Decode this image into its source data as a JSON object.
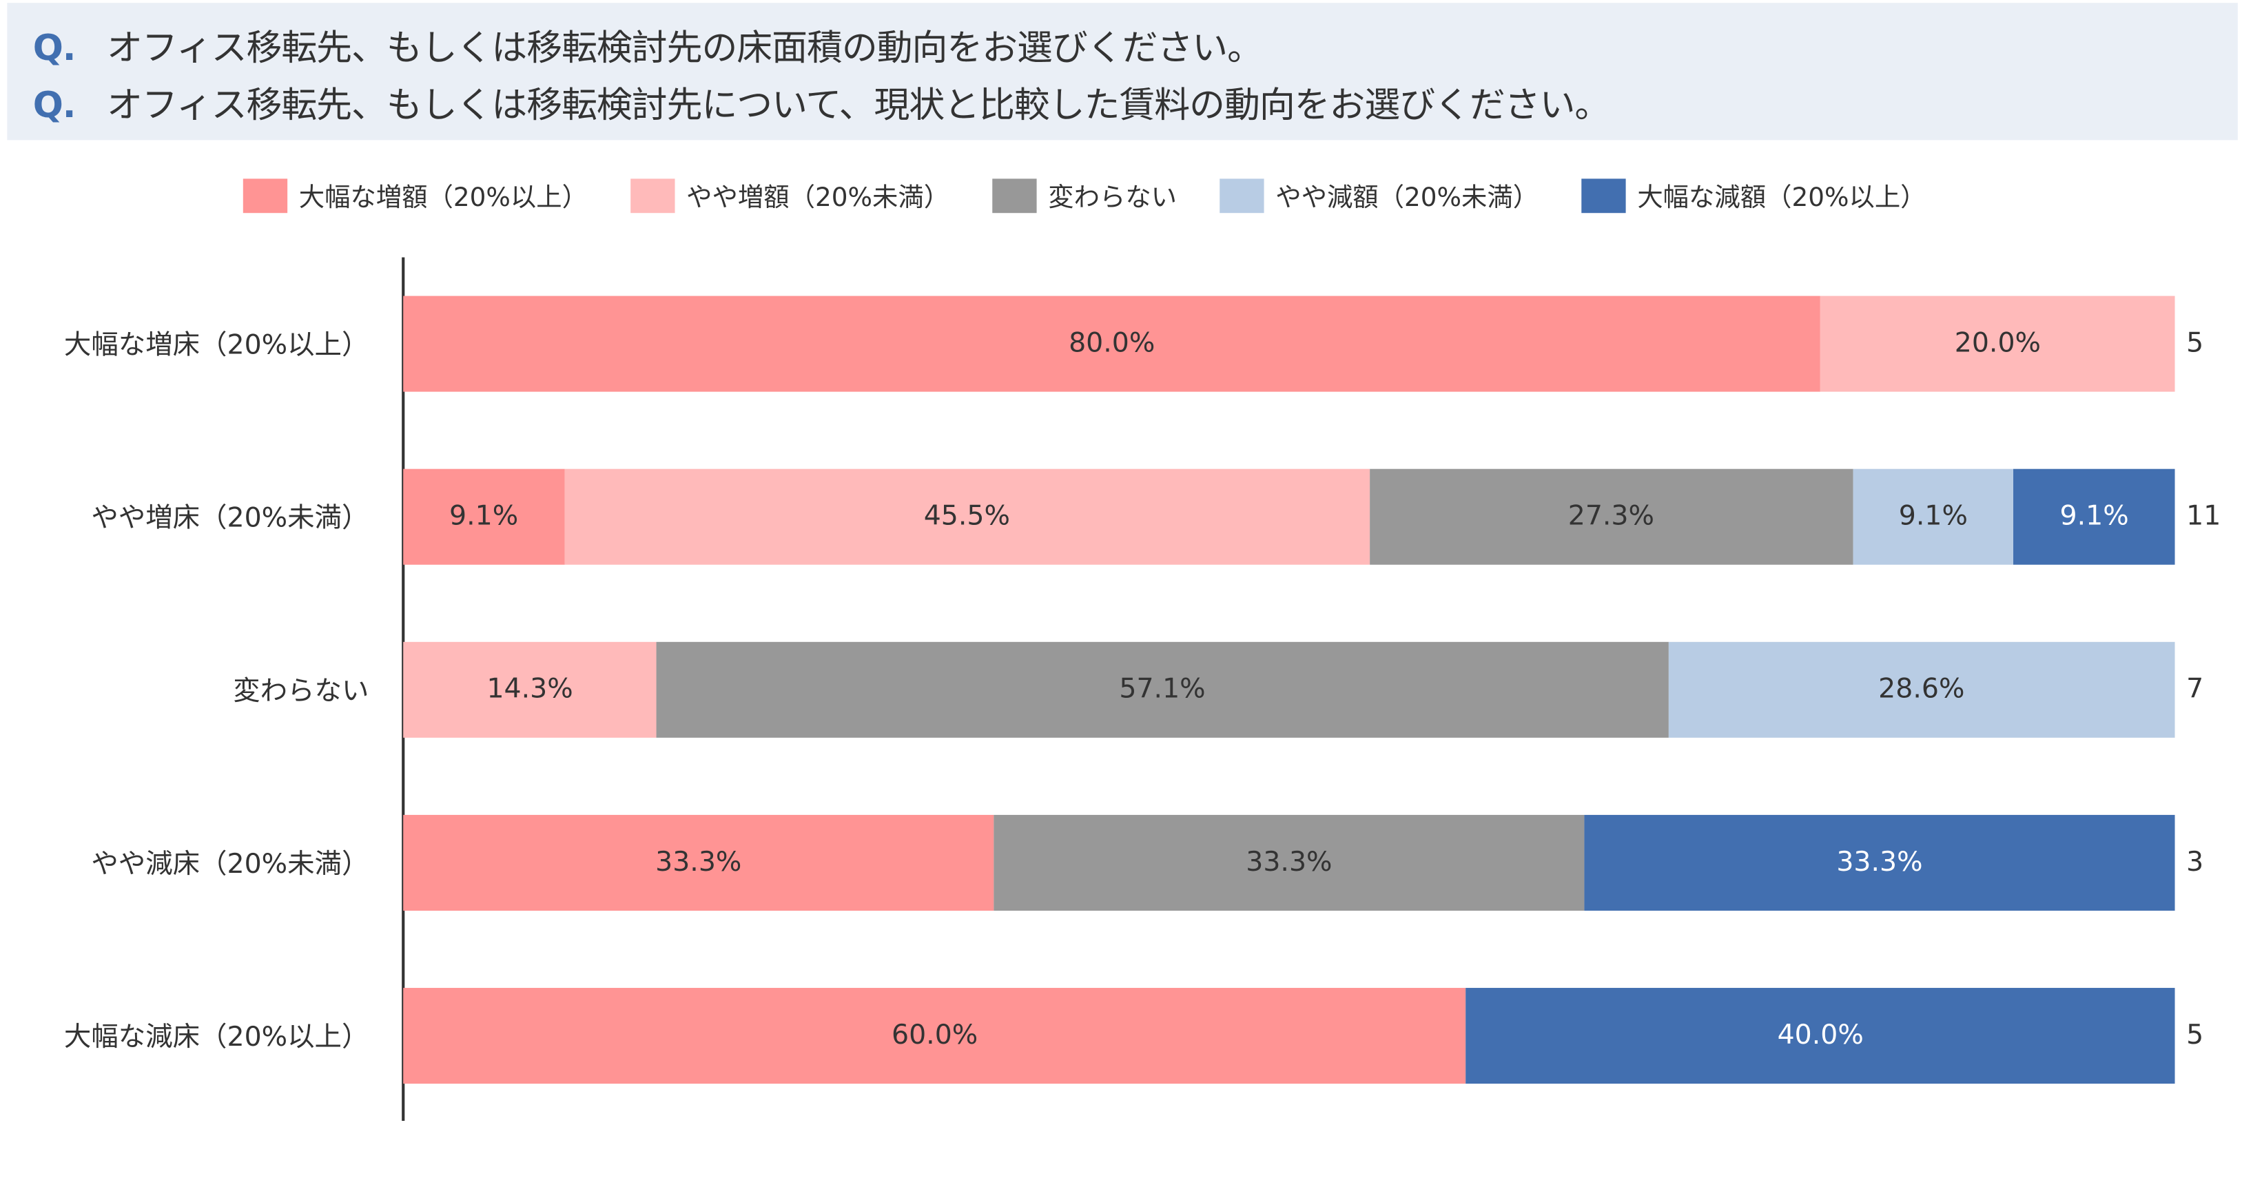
{
  "questions": [
    {
      "mark": "Q.",
      "text": "オフィス移転先、もしくは移転検討先の床面積の動向をお選びください。"
    },
    {
      "mark": "Q.",
      "text": "オフィス移転先、もしくは移転検討先について、現状と比較した賃料の動向をお選びください。"
    }
  ],
  "chart_data": {
    "type": "bar",
    "orientation": "horizontal",
    "stacked": "100%",
    "categories": [
      "大幅な増床（20%以上）",
      "やや増床（20%未満）",
      "変わらない",
      "やや減床（20%未満）",
      "大幅な減床（20%以上）"
    ],
    "counts": [
      "5",
      "11",
      "7",
      "3",
      "5"
    ],
    "series": [
      {
        "name": "大幅な増額（20%以上）",
        "color": "#ff9494",
        "values": [
          80.0,
          9.1,
          0,
          33.3,
          60.0
        ]
      },
      {
        "name": "やや増額（20%未満）",
        "color": "#ffbaba",
        "values": [
          20.0,
          45.5,
          14.3,
          0,
          0
        ]
      },
      {
        "name": "変わらない",
        "color": "#989898",
        "values": [
          0,
          27.3,
          57.1,
          33.3,
          0
        ]
      },
      {
        "name": "やや減額（20%未満）",
        "color": "#b8cce4",
        "values": [
          0,
          9.1,
          28.6,
          0,
          0
        ]
      },
      {
        "name": "大幅な減額（20%以上）",
        "color": "#426fb0",
        "values": [
          0,
          9.1,
          0,
          33.3,
          40.0
        ]
      }
    ],
    "legend": "top",
    "xlim": [
      0,
      100
    ],
    "grid": false
  }
}
